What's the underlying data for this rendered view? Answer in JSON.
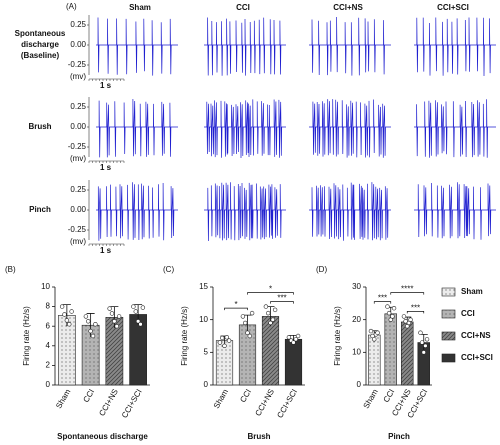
{
  "panel_a": {
    "label": "(A)",
    "columns": [
      "Sham",
      "CCI",
      "CCI+NS",
      "CCI+SCI"
    ],
    "rows": [
      [
        "Spontaneous",
        "discharge",
        "(Baseline)"
      ],
      [
        "Brush"
      ],
      [
        "Pinch"
      ]
    ],
    "trace_ticks": [
      "0.25",
      "0.00",
      "-0.25"
    ],
    "unit": "(mv)",
    "scale": "1 s"
  },
  "chart_data": [
    {
      "type": "bar",
      "panel": "(B)",
      "ylabel": "Firing rate (Hz/s)",
      "xlabel": "Spontaneous discharge",
      "categories": [
        "Sham",
        "CCI",
        "CCI+NS",
        "CCI+SCI"
      ],
      "values": [
        7.1,
        6.1,
        6.9,
        7.2
      ],
      "errors": [
        1.1,
        1.2,
        1.1,
        1.0
      ],
      "points": [
        [
          8.0,
          7.2,
          6.6,
          6.2,
          7.5
        ],
        [
          7.0,
          6.5,
          5.5,
          5.0,
          6.2
        ],
        [
          7.8,
          7.3,
          6.5,
          6.0,
          7.0
        ],
        [
          8.0,
          7.5,
          6.5,
          6.2,
          7.9
        ]
      ],
      "colors": [
        "#ececec",
        "#b4b4b4",
        "#8a8a8a",
        "#333333"
      ],
      "patterns": [
        "dots",
        "dots",
        "stripes",
        "solid"
      ],
      "ylim": [
        0,
        10
      ],
      "yticks": [
        0,
        2,
        4,
        6,
        8,
        10
      ],
      "annotations": []
    },
    {
      "type": "bar",
      "panel": "(C)",
      "ylabel": "Firing rate (Hz/s)",
      "xlabel": "Brush",
      "categories": [
        "Sham",
        "CCI",
        "CCI+NS",
        "CCI+SCI"
      ],
      "values": [
        6.8,
        9.2,
        10.5,
        7.0
      ],
      "errors": [
        0.7,
        1.5,
        1.5,
        0.6
      ],
      "points": [
        [
          6.5,
          7.2,
          6.0,
          7.3,
          6.8
        ],
        [
          10.5,
          9.5,
          8.0,
          7.5,
          11.0
        ],
        [
          12.0,
          11.0,
          9.5,
          10.0,
          11.5
        ],
        [
          7.3,
          6.8,
          6.5,
          7.0,
          7.5
        ]
      ],
      "colors": [
        "#ececec",
        "#b4b4b4",
        "#8a8a8a",
        "#333333"
      ],
      "patterns": [
        "dots",
        "dots",
        "stripes",
        "solid"
      ],
      "ylim": [
        0,
        15
      ],
      "yticks": [
        0,
        5,
        10,
        15
      ],
      "annotations": [
        {
          "between": [
            "Sham",
            "CCI"
          ],
          "label": "*"
        },
        {
          "between": [
            "CCI+NS",
            "CCI+SCI"
          ],
          "label": "***"
        },
        {
          "between": [
            "CCI",
            "CCI+SCI"
          ],
          "label": "*"
        }
      ]
    },
    {
      "type": "bar",
      "panel": "(D)",
      "ylabel": "Firing rate (Hz/s)",
      "xlabel": "Pinch",
      "categories": [
        "Sham",
        "CCI",
        "CCI+NS",
        "CCI+SCI"
      ],
      "values": [
        15.3,
        21.8,
        19.3,
        13.0
      ],
      "errors": [
        1.3,
        2.0,
        1.5,
        2.5
      ],
      "points": [
        [
          16.5,
          15.0,
          14.0,
          15.5,
          16.0
        ],
        [
          24.0,
          22.0,
          20.0,
          21.0,
          23.5
        ],
        [
          21.0,
          19.5,
          18.0,
          19.0,
          20.0
        ],
        [
          16.0,
          13.0,
          10.0,
          12.0,
          14.0
        ]
      ],
      "colors": [
        "#ececec",
        "#b4b4b4",
        "#8a8a8a",
        "#333333"
      ],
      "patterns": [
        "dots",
        "dots",
        "stripes",
        "solid"
      ],
      "ylim": [
        0,
        30
      ],
      "yticks": [
        0,
        10,
        20,
        30
      ],
      "legend": "right",
      "annotations": [
        {
          "between": [
            "Sham",
            "CCI"
          ],
          "label": "***"
        },
        {
          "between": [
            "CCI+NS",
            "CCI+SCI"
          ],
          "label": "***"
        },
        {
          "between": [
            "CCI",
            "CCI+SCI"
          ],
          "label": "****"
        }
      ]
    }
  ]
}
